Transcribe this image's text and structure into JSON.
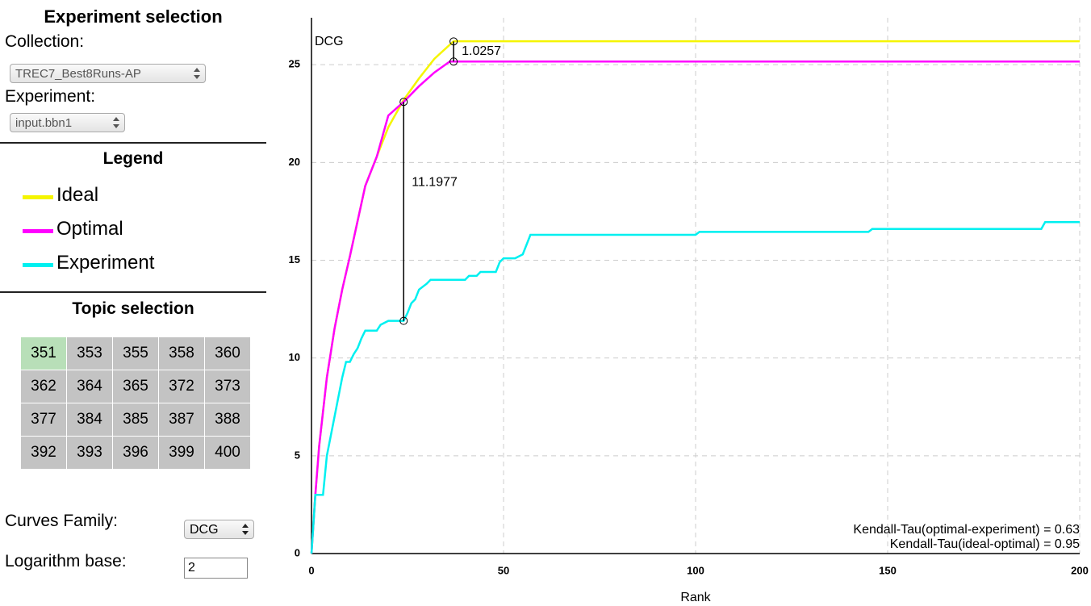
{
  "panel": {
    "experiment_title": "Experiment selection",
    "collection_label": "Collection:",
    "collection_value": "TREC7_Best8Runs-AP",
    "experiment_label": "Experiment:",
    "experiment_value": "input.bbn1",
    "legend_title": "Legend",
    "topic_title": "Topic selection",
    "topics": [
      [
        "351",
        "353",
        "355",
        "358",
        "360"
      ],
      [
        "362",
        "364",
        "365",
        "372",
        "373"
      ],
      [
        "377",
        "384",
        "385",
        "387",
        "388"
      ],
      [
        "392",
        "393",
        "396",
        "399",
        "400"
      ]
    ],
    "curves_family_label": "Curves Family:",
    "curves_family_value": "DCG",
    "log_base_label": "Logarithm base:",
    "log_base_value": "2"
  },
  "chart_data": {
    "type": "line",
    "y_label": "DCG",
    "x_label": "Rank",
    "xlim": [
      0,
      200
    ],
    "xticks": [
      0,
      50,
      100,
      150,
      200
    ],
    "ylim": [
      0,
      27.4
    ],
    "yticks": [
      0,
      5,
      10,
      15,
      20,
      25
    ],
    "grid": true,
    "series": [
      {
        "name": "Ideal",
        "color": "#f5f500",
        "x": [
          0,
          1,
          2,
          4,
          6,
          8,
          10,
          12,
          14,
          17,
          20,
          24,
          28,
          32,
          37,
          200
        ],
        "values": [
          0,
          3,
          5.5,
          9,
          11.5,
          13.5,
          15.2,
          17,
          18.8,
          20.3,
          21.8,
          23.2,
          24.3,
          25.3,
          26.2,
          26.2
        ]
      },
      {
        "name": "Optimal",
        "color": "#ff00ff",
        "x": [
          0,
          1,
          2,
          4,
          6,
          8,
          10,
          12,
          14,
          17,
          20,
          24,
          28,
          32,
          36,
          200
        ],
        "values": [
          0,
          3,
          5.5,
          9,
          11.5,
          13.5,
          15.2,
          17,
          18.8,
          20.3,
          22.4,
          23.1,
          23.9,
          24.6,
          25.16,
          25.16
        ]
      },
      {
        "name": "Experiment",
        "color": "#00f0f0",
        "x": [
          0,
          1,
          3,
          4,
          5,
          6,
          7,
          8,
          9,
          10,
          11,
          12,
          13,
          14,
          17,
          18,
          20,
          24,
          25,
          26,
          27,
          28,
          30,
          31,
          40,
          41,
          43,
          44,
          48,
          49,
          50,
          53,
          55,
          56,
          57,
          100,
          101,
          145,
          146,
          190,
          191,
          200
        ],
        "values": [
          0,
          3,
          3,
          5,
          6,
          7,
          8,
          9,
          9.8,
          9.8,
          10.2,
          10.5,
          11,
          11.4,
          11.4,
          11.7,
          11.9,
          11.9,
          12.3,
          12.8,
          13,
          13.5,
          13.8,
          14,
          14,
          14.2,
          14.2,
          14.4,
          14.4,
          14.9,
          15.1,
          15.1,
          15.3,
          15.8,
          16.3,
          16.3,
          16.45,
          16.45,
          16.6,
          16.6,
          16.95,
          16.95
        ]
      }
    ],
    "annotations": [
      {
        "text": "1.0257",
        "x": 37,
        "y_from": 25.16,
        "y_to": 26.19
      },
      {
        "text": "11.1977",
        "x": 24,
        "y_from": 11.9,
        "y_to": 23.1
      }
    ],
    "notes": [
      "Kendall-Tau(optimal-experiment) = 0.63",
      "Kendall-Tau(ideal-optimal) = 0.95"
    ]
  }
}
